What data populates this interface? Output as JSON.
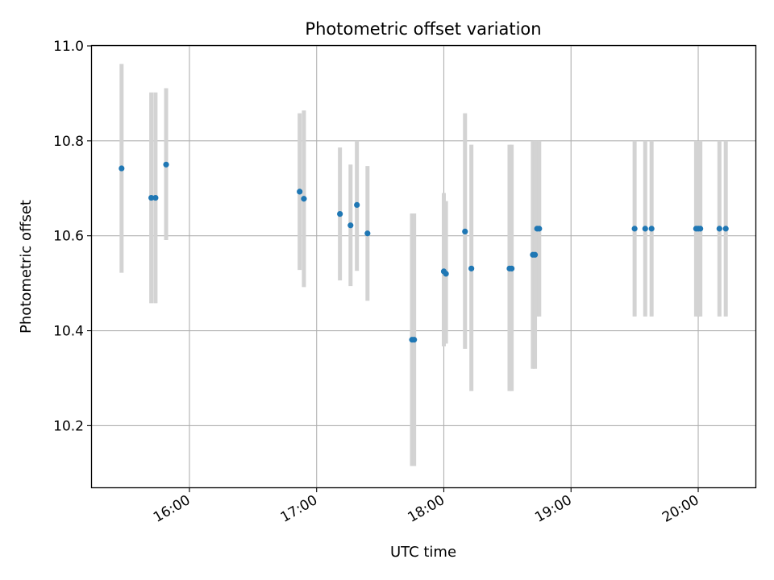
{
  "chart_data": {
    "type": "scatter",
    "title": "Photometric offset variation",
    "xlabel": "UTC time",
    "ylabel": "Photometric offset",
    "x_ticks": [
      "16:00",
      "17:00",
      "18:00",
      "19:00",
      "20:00"
    ],
    "y_ticks": [
      "10.2",
      "10.4",
      "10.6",
      "10.8",
      "11.0"
    ],
    "xlim": [
      "15:14",
      "20:27"
    ],
    "ylim": [
      10.07,
      11.0
    ],
    "grid": true,
    "marker_color": "#1f77b4",
    "errorbar_color": "#d3d3d3",
    "points": [
      {
        "x": "15:28",
        "y": 10.742,
        "ylo": 10.522,
        "yhi": 10.962
      },
      {
        "x": "15:42",
        "y": 10.68,
        "ylo": 10.458,
        "yhi": 10.902
      },
      {
        "x": "15:44",
        "y": 10.68,
        "ylo": 10.458,
        "yhi": 10.902
      },
      {
        "x": "15:49",
        "y": 10.75,
        "ylo": 10.591,
        "yhi": 10.911
      },
      {
        "x": "16:52",
        "y": 10.693,
        "ylo": 10.528,
        "yhi": 10.858
      },
      {
        "x": "16:54",
        "y": 10.678,
        "ylo": 10.492,
        "yhi": 10.864
      },
      {
        "x": "17:11",
        "y": 10.646,
        "ylo": 10.506,
        "yhi": 10.786
      },
      {
        "x": "17:16",
        "y": 10.622,
        "ylo": 10.494,
        "yhi": 10.75
      },
      {
        "x": "17:19",
        "y": 10.665,
        "ylo": 10.526,
        "yhi": 10.8
      },
      {
        "x": "17:24",
        "y": 10.605,
        "ylo": 10.463,
        "yhi": 10.747
      },
      {
        "x": "17:45",
        "y": 10.381,
        "ylo": 10.115,
        "yhi": 10.647
      },
      {
        "x": "17:46",
        "y": 10.381,
        "ylo": 10.115,
        "yhi": 10.647
      },
      {
        "x": "18:00",
        "y": 10.525,
        "ylo": 10.367,
        "yhi": 10.69
      },
      {
        "x": "18:01",
        "y": 10.52,
        "ylo": 10.373,
        "yhi": 10.673
      },
      {
        "x": "18:10",
        "y": 10.609,
        "ylo": 10.362,
        "yhi": 10.858
      },
      {
        "x": "18:13",
        "y": 10.531,
        "ylo": 10.273,
        "yhi": 10.792
      },
      {
        "x": "18:31",
        "y": 10.531,
        "ylo": 10.273,
        "yhi": 10.792
      },
      {
        "x": "18:32",
        "y": 10.531,
        "ylo": 10.273,
        "yhi": 10.792
      },
      {
        "x": "18:42",
        "y": 10.56,
        "ylo": 10.32,
        "yhi": 10.8
      },
      {
        "x": "18:43",
        "y": 10.56,
        "ylo": 10.32,
        "yhi": 10.8
      },
      {
        "x": "18:44",
        "y": 10.615,
        "ylo": 10.43,
        "yhi": 10.8
      },
      {
        "x": "18:45",
        "y": 10.615,
        "ylo": 10.43,
        "yhi": 10.8
      },
      {
        "x": "19:30",
        "y": 10.615,
        "ylo": 10.43,
        "yhi": 10.8
      },
      {
        "x": "19:35",
        "y": 10.615,
        "ylo": 10.43,
        "yhi": 10.8
      },
      {
        "x": "19:38",
        "y": 10.615,
        "ylo": 10.43,
        "yhi": 10.8
      },
      {
        "x": "19:59",
        "y": 10.615,
        "ylo": 10.43,
        "yhi": 10.8
      },
      {
        "x": "20:00",
        "y": 10.615,
        "ylo": 10.43,
        "yhi": 10.8
      },
      {
        "x": "20:01",
        "y": 10.615,
        "ylo": 10.43,
        "yhi": 10.8
      },
      {
        "x": "20:10",
        "y": 10.615,
        "ylo": 10.43,
        "yhi": 10.8
      },
      {
        "x": "20:13",
        "y": 10.615,
        "ylo": 10.43,
        "yhi": 10.8
      }
    ]
  }
}
